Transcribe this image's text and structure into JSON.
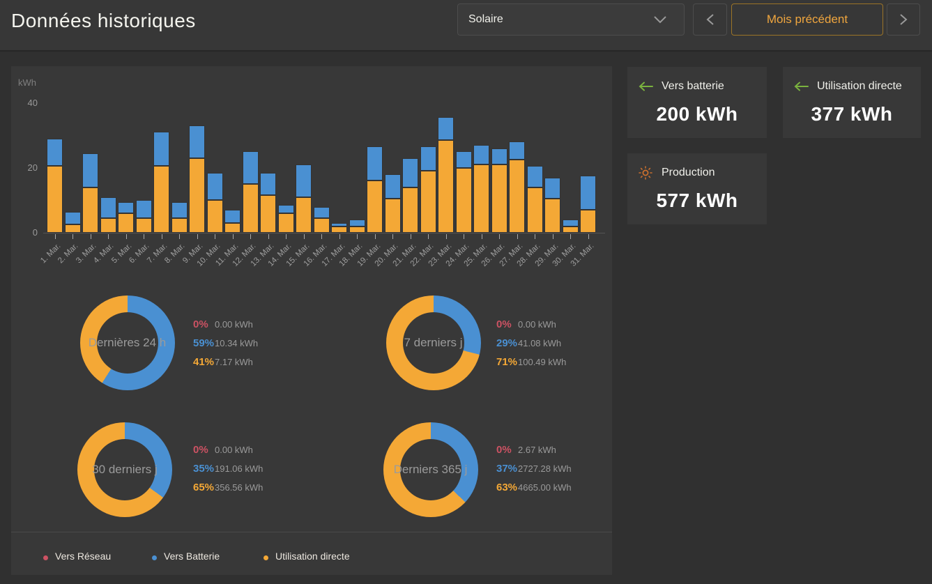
{
  "header": {
    "title": "Données historiques",
    "sensor_dropdown": {
      "value": "Solaire"
    },
    "prev_month_label": "Mois précédent"
  },
  "cards": {
    "battery": {
      "label": "Vers batterie",
      "value": "200 kWh"
    },
    "direct": {
      "label": "Utilisation directe",
      "value": "377 kWh"
    },
    "production": {
      "label": "Production",
      "value": "577 kWh"
    }
  },
  "colors": {
    "grid_red": "#cc5263",
    "battery_blue": "#4a90d2",
    "direct_orange": "#f4a836",
    "green_arrow": "#7ab23f",
    "sun_orange": "#c96f2e",
    "accent_orange_text": "#f0a63e"
  },
  "legend": [
    {
      "label": "Vers Réseau",
      "color": "#cc5263"
    },
    {
      "label": "Vers Batterie",
      "color": "#4a90d2"
    },
    {
      "label": "Utilisation directe",
      "color": "#f4a836"
    }
  ],
  "chart_data": [
    {
      "type": "bar",
      "stacked": true,
      "title": "",
      "xlabel": "",
      "ylabel": "kWh",
      "y_ticks": [
        0,
        20,
        40
      ],
      "ylim": [
        0,
        42
      ],
      "grid": false,
      "categories": [
        "1. Mar.",
        "2. Mar.",
        "3. Mar.",
        "4. Mar.",
        "5. Mar.",
        "6. Mar.",
        "7. Mar.",
        "8. Mar.",
        "9. Mar.",
        "10. Mar.",
        "11. Mar.",
        "12. Mar.",
        "13. Mar.",
        "14. Mar.",
        "15. Mar.",
        "16. Mar.",
        "17. Mar.",
        "18. Mar.",
        "19. Mar.",
        "20. Mar.",
        "21. Mar.",
        "22. Mar.",
        "23. Mar.",
        "24. Mar.",
        "25. Mar.",
        "26. Mar.",
        "27. Mar.",
        "28. Mar.",
        "29. Mar.",
        "30. Mar.",
        "31. Mar."
      ],
      "series": [
        {
          "name": "Utilisation directe",
          "color": "#f4a836",
          "values": [
            20.5,
            2.5,
            14,
            4.5,
            6,
            4.5,
            20.5,
            4.5,
            23,
            10,
            3,
            15,
            11.5,
            6,
            11,
            4.5,
            2,
            2,
            16,
            10.5,
            14,
            19,
            28.5,
            20,
            21,
            21,
            22.5,
            14,
            10.5,
            2,
            7
          ]
        },
        {
          "name": "Vers Batterie",
          "color": "#4a90d2",
          "values": [
            8.5,
            4,
            10.5,
            6.5,
            3.5,
            5.5,
            10.5,
            5,
            10,
            8.5,
            4,
            10,
            7,
            2.5,
            10,
            3.5,
            1,
            2,
            10.5,
            7.5,
            9,
            7.5,
            7,
            5,
            6,
            5,
            5.5,
            6.5,
            6.5,
            2,
            10.5
          ]
        },
        {
          "name": "Vers Réseau",
          "color": "#cc5263",
          "values": [
            0,
            0,
            0,
            0,
            0,
            0,
            0,
            0,
            0,
            0,
            0,
            0,
            0,
            0,
            0,
            0,
            0,
            0,
            0,
            0,
            0,
            0,
            0,
            0,
            0,
            0,
            0,
            0,
            0,
            0,
            0
          ]
        }
      ]
    },
    {
      "type": "pie",
      "label": "Dernières 24 h",
      "slices": [
        {
          "name": "Vers Réseau",
          "pct": 0,
          "value": "0.00 kWh",
          "color": "#cc5263"
        },
        {
          "name": "Vers Batterie",
          "pct": 59,
          "value": "10.34 kWh",
          "color": "#4a90d2"
        },
        {
          "name": "Utilisation directe",
          "pct": 41,
          "value": "7.17 kWh",
          "color": "#f4a836"
        }
      ]
    },
    {
      "type": "pie",
      "label": "7 derniers j",
      "slices": [
        {
          "name": "Vers Réseau",
          "pct": 0,
          "value": "0.00 kWh",
          "color": "#cc5263"
        },
        {
          "name": "Vers Batterie",
          "pct": 29,
          "value": "41.08 kWh",
          "color": "#4a90d2"
        },
        {
          "name": "Utilisation directe",
          "pct": 71,
          "value": "100.49 kWh",
          "color": "#f4a836"
        }
      ]
    },
    {
      "type": "pie",
      "label": "30 derniers j",
      "slices": [
        {
          "name": "Vers Réseau",
          "pct": 0,
          "value": "0.00 kWh",
          "color": "#cc5263"
        },
        {
          "name": "Vers Batterie",
          "pct": 35,
          "value": "191.06 kWh",
          "color": "#4a90d2"
        },
        {
          "name": "Utilisation directe",
          "pct": 65,
          "value": "356.56 kWh",
          "color": "#f4a836"
        }
      ]
    },
    {
      "type": "pie",
      "label": "Derniers 365 j",
      "slices": [
        {
          "name": "Vers Réseau",
          "pct": 0,
          "value": "2.67 kWh",
          "color": "#cc5263"
        },
        {
          "name": "Vers Batterie",
          "pct": 37,
          "value": "2727.28 kWh",
          "color": "#4a90d2"
        },
        {
          "name": "Utilisation directe",
          "pct": 63,
          "value": "4665.00 kWh",
          "color": "#f4a836"
        }
      ]
    }
  ]
}
